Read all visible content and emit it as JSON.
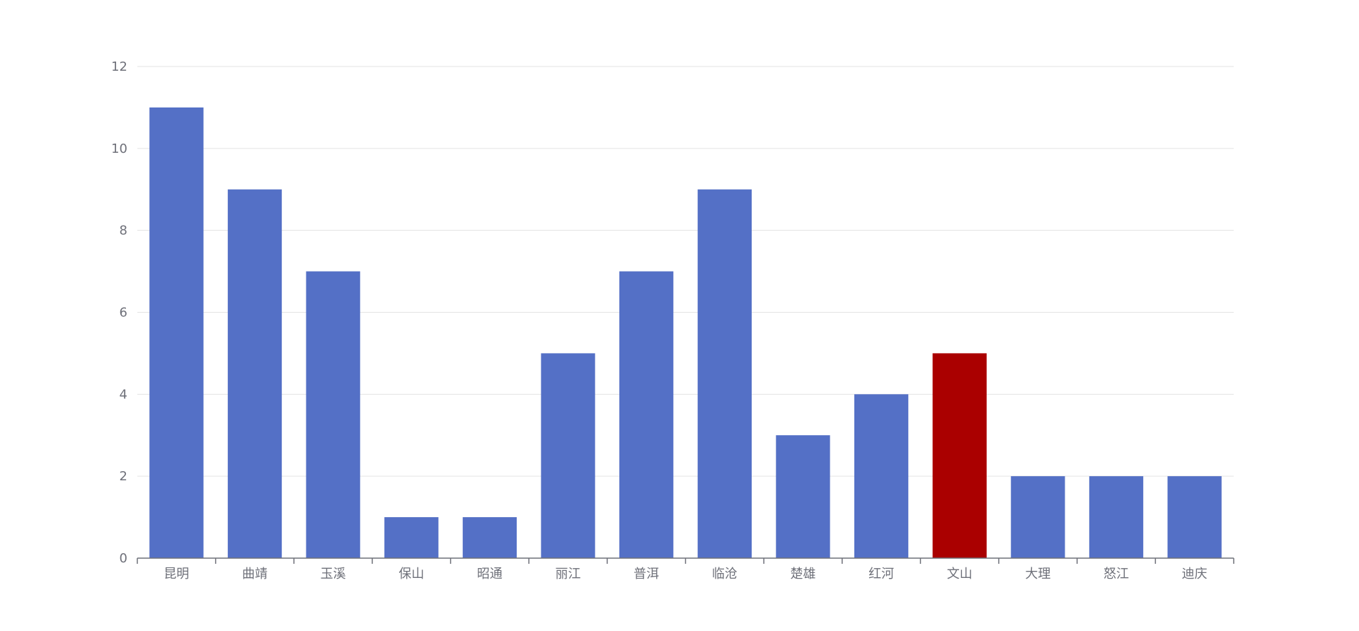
{
  "chart_data": {
    "type": "bar",
    "title": "",
    "xlabel": "",
    "ylabel": "",
    "categories": [
      "昆明",
      "曲靖",
      "玉溪",
      "保山",
      "昭通",
      "丽江",
      "普洱",
      "临沧",
      "楚雄",
      "红河",
      "文山",
      "大理",
      "怒江",
      "迪庆"
    ],
    "values": [
      11,
      9,
      7,
      1,
      1,
      5,
      7,
      9,
      3,
      4,
      5,
      2,
      2,
      2
    ],
    "highlight_index": 10,
    "ylim": [
      0,
      12
    ],
    "yticks": [
      0,
      2,
      4,
      6,
      8,
      10,
      12
    ],
    "grid": true,
    "legend": "none",
    "colors": {
      "bar": "#5470c6",
      "highlight": "#aa0000",
      "grid": "#e3e3e3",
      "axis": "#6e7079",
      "label": "#6e7079"
    }
  }
}
